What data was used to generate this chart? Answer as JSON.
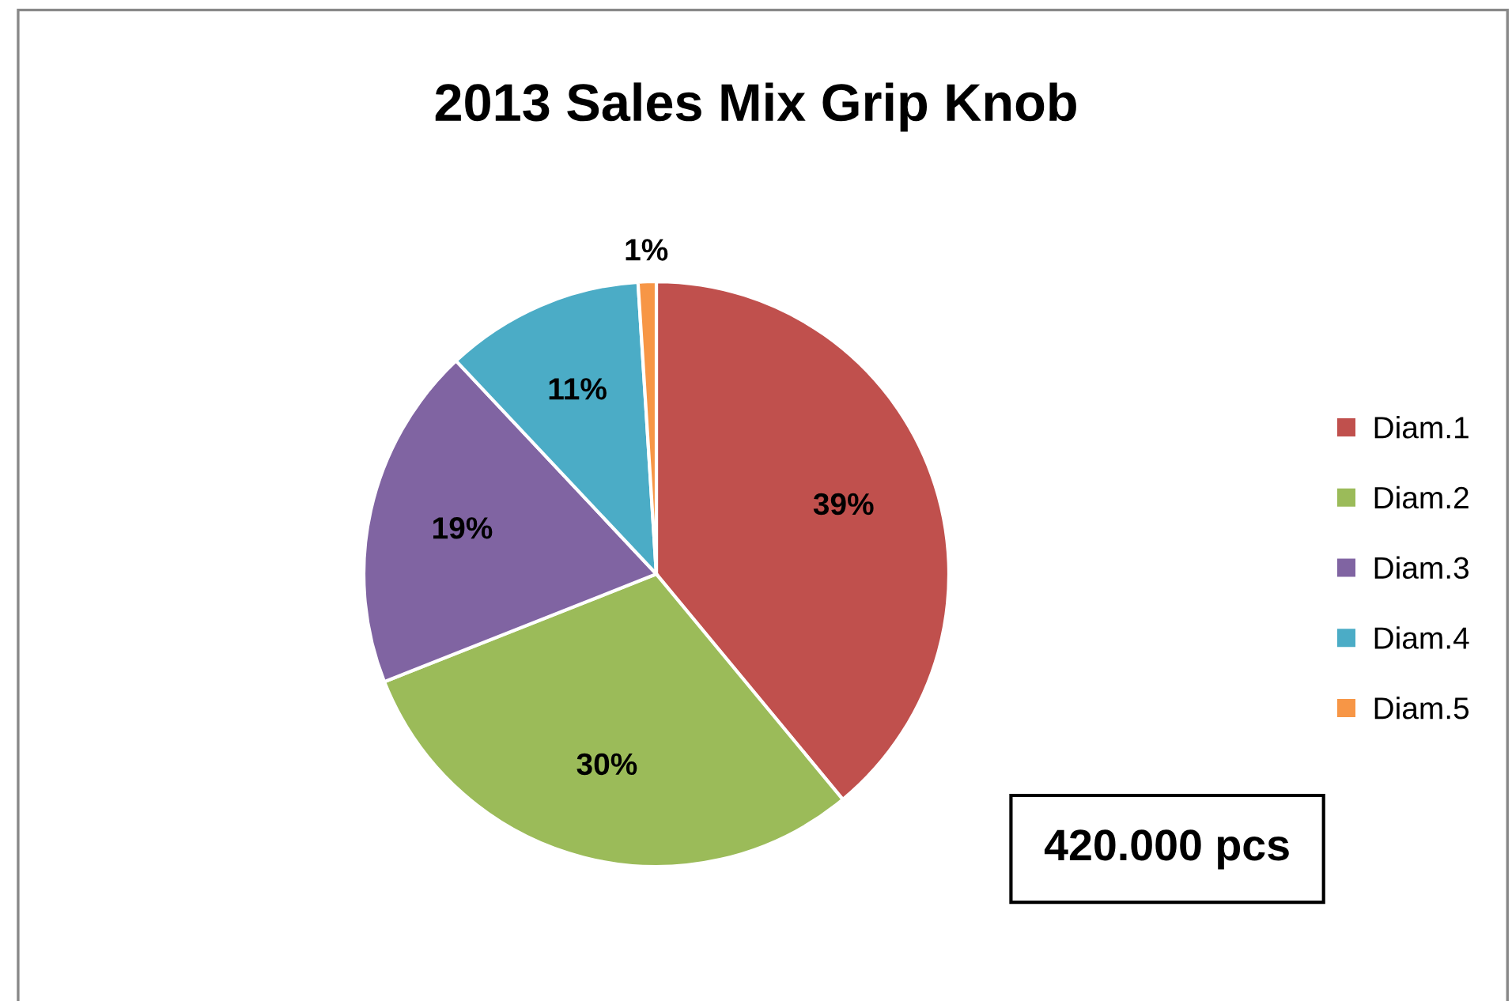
{
  "chart_data": {
    "type": "pie",
    "title": "2013 Sales Mix Grip Knob",
    "categories": [
      "Diam.1",
      "Diam.2",
      "Diam.3",
      "Diam.4",
      "Diam.5"
    ],
    "values": [
      39,
      30,
      19,
      11,
      1
    ],
    "value_labels": [
      "39%",
      "30%",
      "19%",
      "11%",
      "1%"
    ],
    "colors": [
      "#c0504d",
      "#9bbb59",
      "#8064a2",
      "#4bacc6",
      "#f79646"
    ],
    "legend": "right",
    "annotations": [
      "420.000 pcs"
    ]
  }
}
